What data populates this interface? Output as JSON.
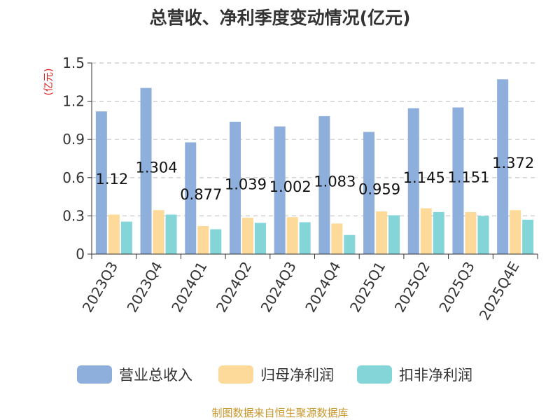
{
  "chart_data": {
    "type": "bar",
    "title": "总营收、净利季度变动情况(亿元)",
    "ylabel": "(亿元)",
    "xlabel": "",
    "categories": [
      "2023Q3",
      "2023Q4",
      "2024Q1",
      "2024Q2",
      "2024Q3",
      "2024Q4",
      "2025Q1",
      "2025Q2",
      "2025Q3",
      "2025Q4E"
    ],
    "series": [
      {
        "name": "营业总收入",
        "color": "#8eaedc",
        "values": [
          1.12,
          1.304,
          0.877,
          1.039,
          1.002,
          1.083,
          0.959,
          1.145,
          1.151,
          1.372
        ],
        "labels": [
          "1.12",
          "1.304",
          "0.877",
          "1.039",
          "1.002",
          "1.083",
          "0.959",
          "1.145",
          "1.151",
          "1.372"
        ]
      },
      {
        "name": "归母净利润",
        "color": "#fdd99a",
        "values": [
          0.31,
          0.345,
          0.22,
          0.285,
          0.29,
          0.24,
          0.335,
          0.36,
          0.33,
          0.345
        ]
      },
      {
        "name": "扣非净利润",
        "color": "#83d5d8",
        "values": [
          0.255,
          0.31,
          0.195,
          0.245,
          0.25,
          0.15,
          0.305,
          0.33,
          0.3,
          0.27
        ]
      }
    ],
    "yticks": [
      "0",
      "0.3",
      "0.6",
      "0.9",
      "1.2",
      "1.5"
    ],
    "ylim": [
      0,
      1.5
    ],
    "grid": true,
    "legend_position": "bottom"
  },
  "footer": {
    "source": "制图数据来自恒生聚源数据库"
  }
}
